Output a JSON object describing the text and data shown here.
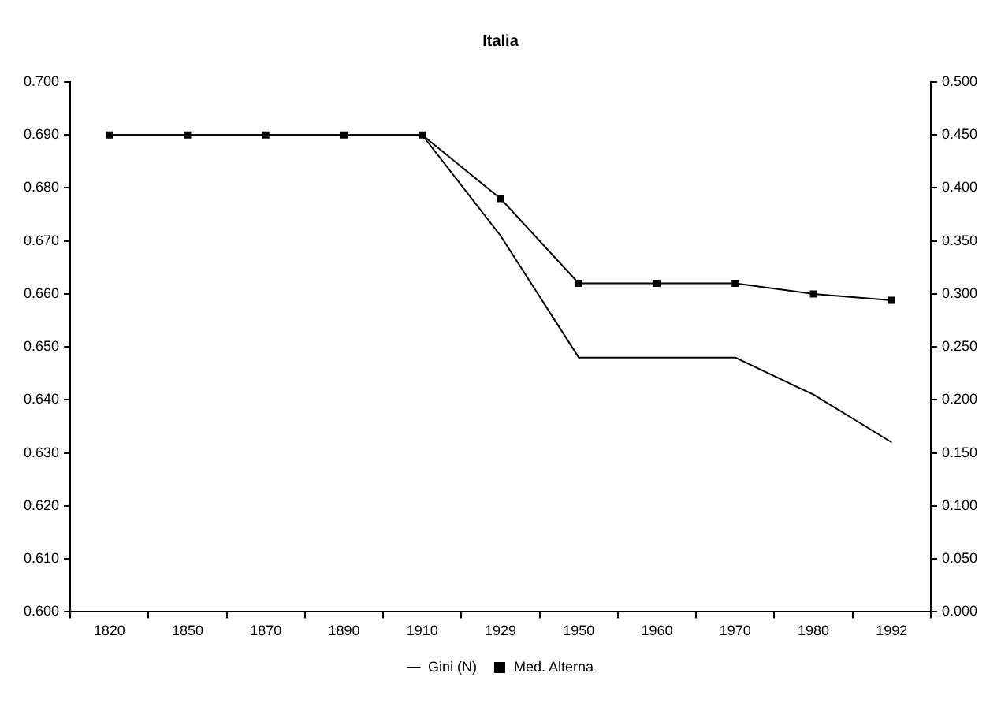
{
  "chart_data": {
    "type": "line",
    "title": "Italia",
    "categories": [
      "1820",
      "1850",
      "1870",
      "1890",
      "1910",
      "1929",
      "1950",
      "1960",
      "1970",
      "1980",
      "1992"
    ],
    "series": [
      {
        "name": "Gini (N)",
        "color": "#000000",
        "marker": "none",
        "values": [
          0.69,
          0.69,
          0.69,
          0.69,
          0.69,
          0.671,
          0.648,
          0.648,
          0.648,
          0.641,
          0.632
        ]
      },
      {
        "name": "Med. Alterna",
        "color": "#000000",
        "marker": "square",
        "axis": "y2",
        "values": [
          0.45,
          0.45,
          0.45,
          0.45,
          0.45,
          0.39,
          0.31,
          0.31,
          0.31,
          0.3,
          0.294
        ]
      }
    ],
    "ylim": [
      0.6,
      0.7
    ],
    "yticks": [
      {
        "value": 0.6,
        "label": "0.600"
      },
      {
        "value": 0.61,
        "label": "0.610"
      },
      {
        "value": 0.62,
        "label": "0.620"
      },
      {
        "value": 0.63,
        "label": "0.630"
      },
      {
        "value": 0.64,
        "label": "0.640"
      },
      {
        "value": 0.65,
        "label": "0.650"
      },
      {
        "value": 0.66,
        "label": "0.660"
      },
      {
        "value": 0.67,
        "label": "0.670"
      },
      {
        "value": 0.68,
        "label": "0.680"
      },
      {
        "value": 0.69,
        "label": "0.690"
      },
      {
        "value": 0.7,
        "label": "0.700"
      }
    ],
    "y2lim": [
      0,
      0.5
    ],
    "y2ticks": [
      {
        "value": 0,
        "label": "0.000"
      },
      {
        "value": 0.05,
        "label": "0.050"
      },
      {
        "value": 0.1,
        "label": "0.100"
      },
      {
        "value": 0.15,
        "label": "0.150"
      },
      {
        "value": 0.2,
        "label": "0.200"
      },
      {
        "value": 0.25,
        "label": "0.250"
      },
      {
        "value": 0.3,
        "label": "0.300"
      },
      {
        "value": 0.35,
        "label": "0.350"
      },
      {
        "value": 0.4,
        "label": "0.400"
      },
      {
        "value": 0.45,
        "label": "0.450"
      },
      {
        "value": 0.5,
        "label": "0.500"
      }
    ],
    "legend": "bottom"
  }
}
